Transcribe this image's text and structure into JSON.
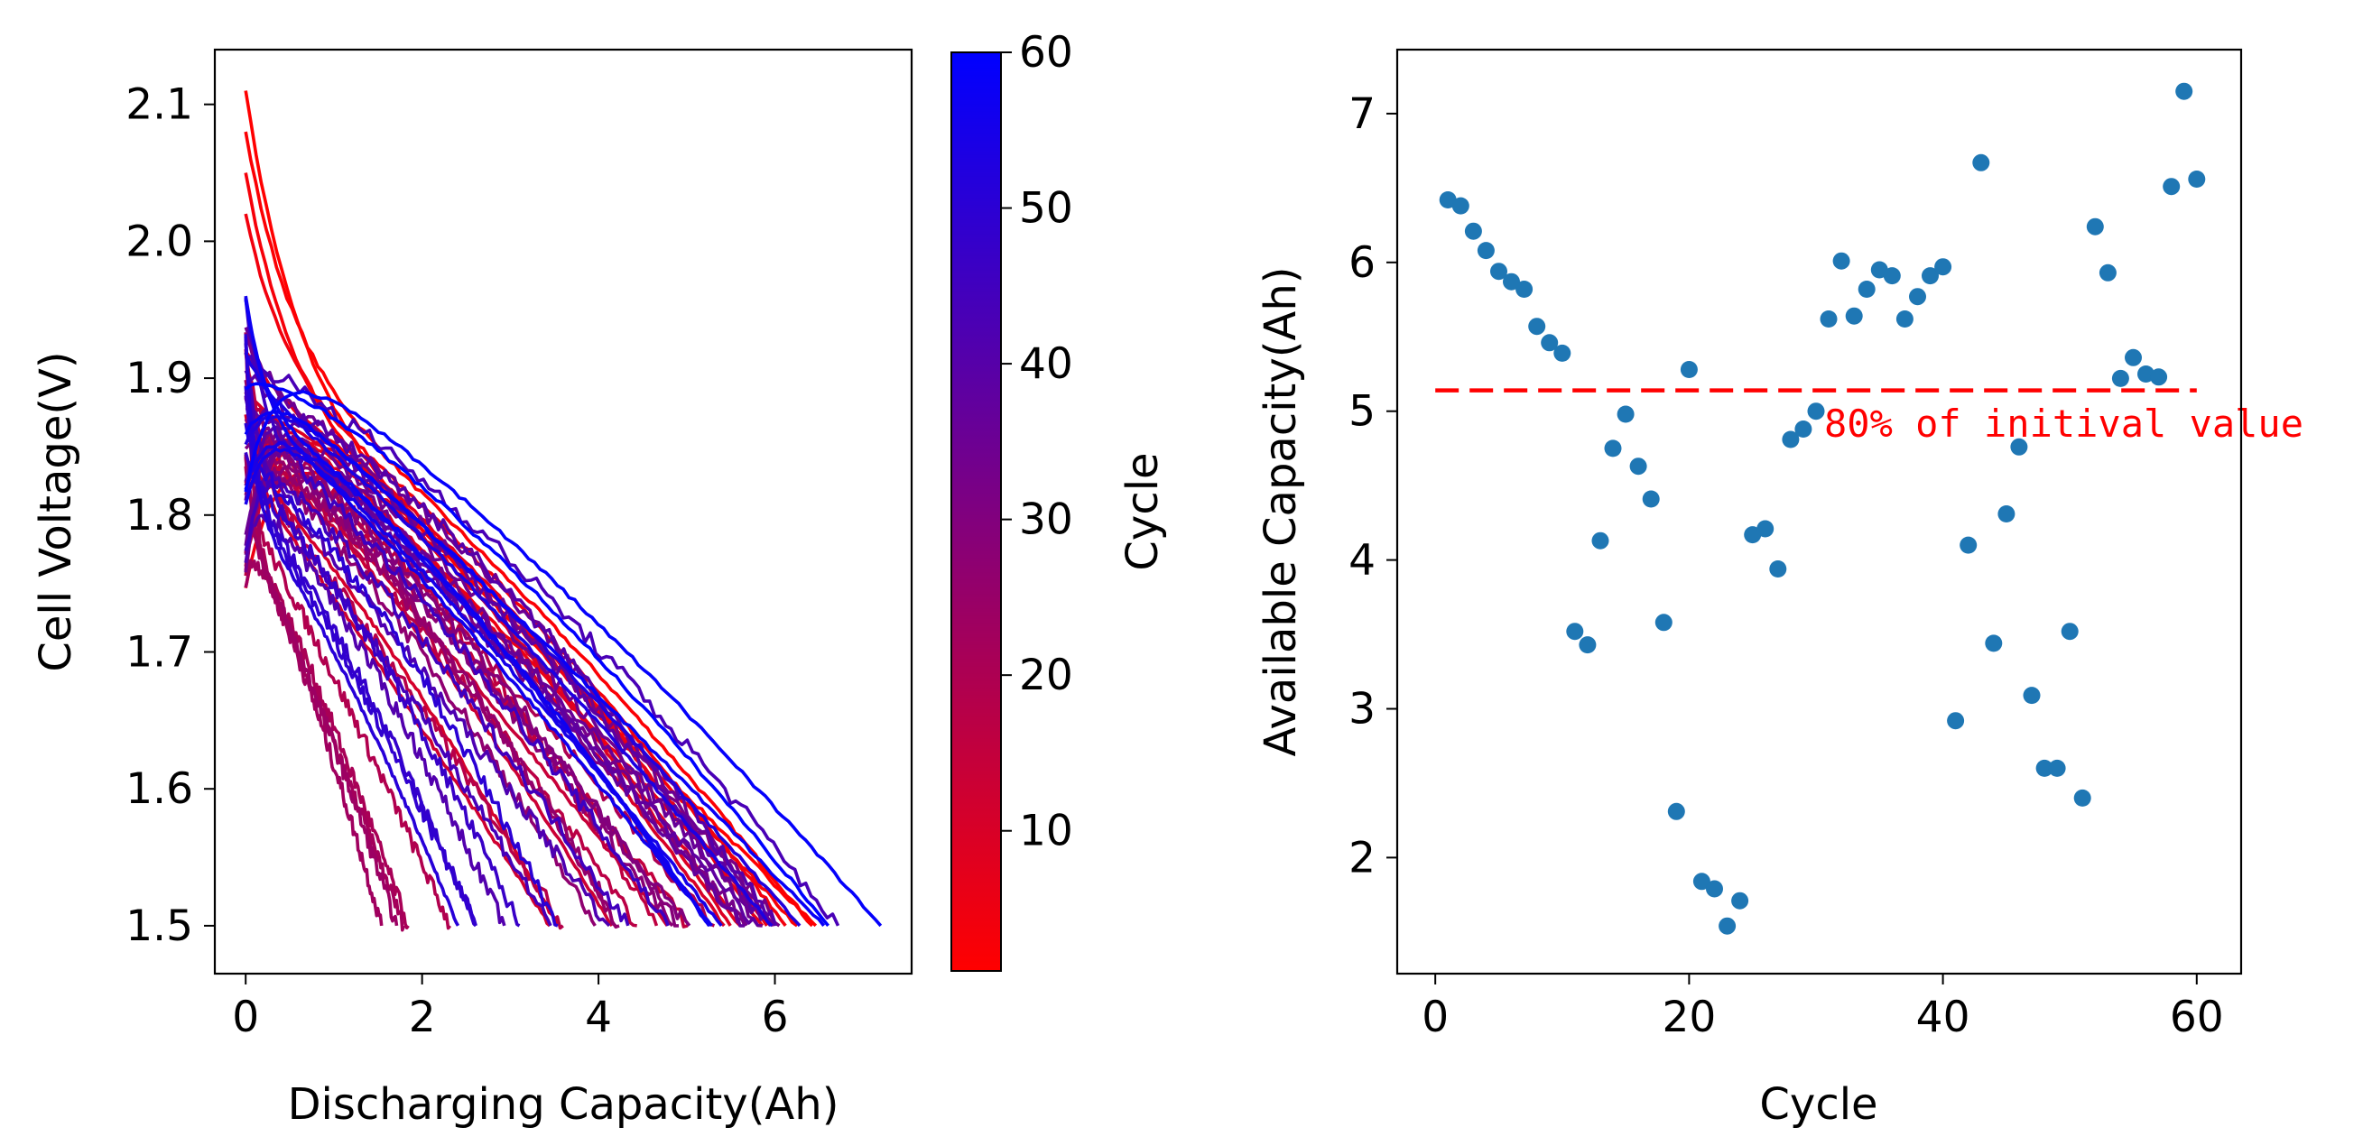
{
  "chart_data": [
    {
      "type": "line",
      "xlabel": "Discharging Capacity(Ah)",
      "ylabel": "Cell Voltage(V)",
      "xlim": [
        -0.35,
        7.55
      ],
      "ylim": [
        1.465,
        2.14
      ],
      "xticks": [
        0,
        2,
        4,
        6
      ],
      "yticks": [
        1.5,
        1.6,
        1.7,
        1.8,
        1.9,
        2.0,
        2.1
      ],
      "xtick_labels": [
        "0",
        "2",
        "4",
        "6"
      ],
      "ytick_labels": [
        "1.5",
        "1.6",
        "1.7",
        "1.8",
        "1.9",
        "2.0",
        "2.1"
      ],
      "grid": false,
      "color_by": "Cycle",
      "colormap": {
        "low_color": "#ff0000",
        "high_color": "#0000ff",
        "min": 1,
        "max": 60
      },
      "colorbar": {
        "label": "Cycle",
        "ticks": [
          10,
          20,
          30,
          40,
          50,
          60
        ],
        "tick_labels": [
          "10",
          "20",
          "30",
          "40",
          "50",
          "60"
        ]
      },
      "curve_family": {
        "cycles": "1-60",
        "start_voltage_range": [
          1.74,
          2.11
        ],
        "end_voltage": 1.5,
        "end_capacity_range": [
          1.5,
          7.2
        ],
        "end_capacity_source": "available capacity per cycle (right panel)"
      }
    },
    {
      "type": "scatter",
      "xlabel": "Cycle",
      "ylabel": "Available Capacity(Ah)",
      "xlim": [
        -3,
        63.5
      ],
      "ylim": [
        1.22,
        7.43
      ],
      "xticks": [
        0,
        20,
        40,
        60
      ],
      "yticks": [
        2,
        3,
        4,
        5,
        6,
        7
      ],
      "xtick_labels": [
        "0",
        "20",
        "40",
        "60"
      ],
      "ytick_labels": [
        "2",
        "3",
        "4",
        "5",
        "6",
        "7"
      ],
      "grid": false,
      "point_color": "#1f77b4",
      "x": [
        1,
        2,
        3,
        4,
        5,
        6,
        7,
        8,
        9,
        10,
        11,
        12,
        13,
        14,
        15,
        16,
        17,
        18,
        19,
        20,
        21,
        22,
        23,
        24,
        25,
        26,
        27,
        28,
        29,
        30,
        31,
        32,
        33,
        34,
        35,
        36,
        37,
        38,
        39,
        40,
        41,
        42,
        43,
        44,
        45,
        46,
        47,
        48,
        49,
        50,
        51,
        52,
        53,
        54,
        55,
        56,
        57,
        58,
        59,
        60
      ],
      "y": [
        6.42,
        6.38,
        6.21,
        6.08,
        5.94,
        5.87,
        5.82,
        5.57,
        5.46,
        5.39,
        3.52,
        3.43,
        4.13,
        4.75,
        4.98,
        4.63,
        4.41,
        3.58,
        2.31,
        5.28,
        1.84,
        1.79,
        1.54,
        1.71,
        4.17,
        4.21,
        3.94,
        4.81,
        4.88,
        5.0,
        5.62,
        6.01,
        5.64,
        5.82,
        5.95,
        5.91,
        5.62,
        5.77,
        5.91,
        5.97,
        2.92,
        4.1,
        6.67,
        3.44,
        4.31,
        4.76,
        3.09,
        2.6,
        2.6,
        3.52,
        2.4,
        6.24,
        5.93,
        5.22,
        5.36,
        5.25,
        5.23,
        6.51,
        7.15,
        6.56
      ],
      "reference_line": {
        "y": 5.14,
        "x_range": [
          0,
          60
        ],
        "color": "#ff0000",
        "style": "dashed"
      },
      "annotation": {
        "text": "80% of initival value",
        "x": 30,
        "y": 4.92,
        "color": "#ff0000"
      }
    }
  ]
}
